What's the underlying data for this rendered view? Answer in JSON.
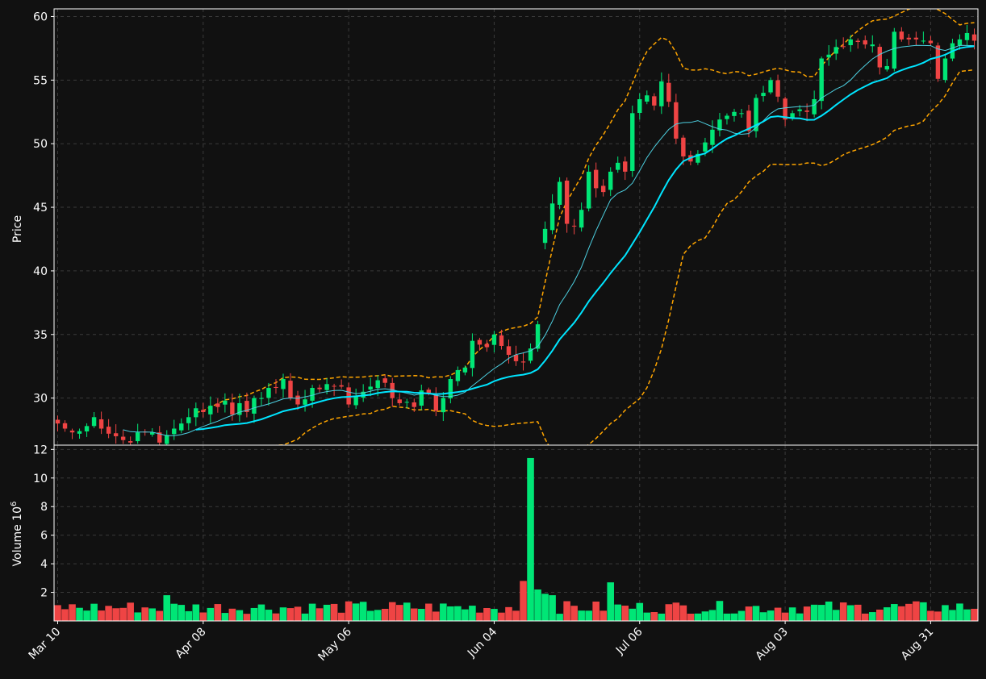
{
  "colors": {
    "background": "#111111",
    "frame": "#ffffff",
    "grid": "#3a3a3a",
    "up": "#00e676",
    "down": "#ef4444",
    "sma_fast": "#4dd0e1",
    "sma_slow": "#00e5ff",
    "bollinger": "#ffa500",
    "text": "#ffffff"
  },
  "chart_data": [
    {
      "type": "candlestick",
      "ylabel": "Price",
      "ylim": [
        26.3,
        60.6
      ],
      "yticks": [
        30,
        35,
        40,
        45,
        50,
        55,
        60
      ],
      "grid": true,
      "xtick_labels": [
        {
          "label": "Mar 10",
          "index": 0
        },
        {
          "label": "Apr 08",
          "index": 20
        },
        {
          "label": "May 06",
          "index": 40
        },
        {
          "label": "Jun 04",
          "index": 60
        },
        {
          "label": "Jul 06",
          "index": 80
        },
        {
          "label": "Aug 03",
          "index": 100
        },
        {
          "label": "Aug 31",
          "index": 120
        }
      ],
      "num_bars": 127,
      "close": [
        28.0,
        27.6,
        27.3,
        27.4,
        27.8,
        28.5,
        27.6,
        27.2,
        27.0,
        26.7,
        26.5,
        27.3,
        27.3,
        27.3,
        26.5,
        27.1,
        27.6,
        28.0,
        28.5,
        29.2,
        28.9,
        29.4,
        29.3,
        29.8,
        28.7,
        29.6,
        28.9,
        30.0,
        30.0,
        30.8,
        30.8,
        31.5,
        30.0,
        29.5,
        29.9,
        30.8,
        30.7,
        31.1,
        30.9,
        30.9,
        29.5,
        30.2,
        30.5,
        30.9,
        31.4,
        31.2,
        30.0,
        29.6,
        29.7,
        29.3,
        30.6,
        30.4,
        29.0,
        30.0,
        31.5,
        32.2,
        32.4,
        34.5,
        34.2,
        34.0,
        35.0,
        34.1,
        33.4,
        32.9,
        32.8,
        33.9,
        35.8,
        43.3,
        45.3,
        47.0,
        43.7,
        43.5,
        44.8,
        47.8,
        46.5,
        46.2,
        47.8,
        48.5,
        47.8,
        52.4,
        53.5,
        53.8,
        53.0,
        54.9,
        53.3,
        50.4,
        49.0,
        48.6,
        49.2,
        50.1,
        51.1,
        51.9,
        52.2,
        52.5,
        52.4,
        51.0,
        53.6,
        54.0,
        55.0,
        53.7,
        51.9,
        52.4,
        52.7,
        52.5,
        53.5,
        56.7,
        57.0,
        57.6,
        57.6,
        58.2,
        58.0,
        57.8,
        57.8,
        56.0,
        56.1,
        58.8,
        58.2,
        58.2,
        58.2,
        58.1,
        57.9,
        55.1,
        56.7,
        57.9,
        58.2,
        58.7,
        58.1
      ],
      "series": [
        {
          "name": "",
          "style": "thin",
          "color_key": "sma_fast"
        },
        {
          "name": "",
          "style": "thick",
          "color_key": "sma_slow"
        },
        {
          "name": "",
          "style": "dashed",
          "color_key": "bollinger"
        }
      ]
    },
    {
      "type": "bar",
      "ylabel": "Volume  10",
      "ylabel_exponent": "6",
      "ylim": [
        0,
        12.3
      ],
      "yticks": [
        2,
        4,
        6,
        8,
        10,
        12
      ],
      "grid": true,
      "spike": {
        "index": 65,
        "value": 11.4
      }
    }
  ]
}
